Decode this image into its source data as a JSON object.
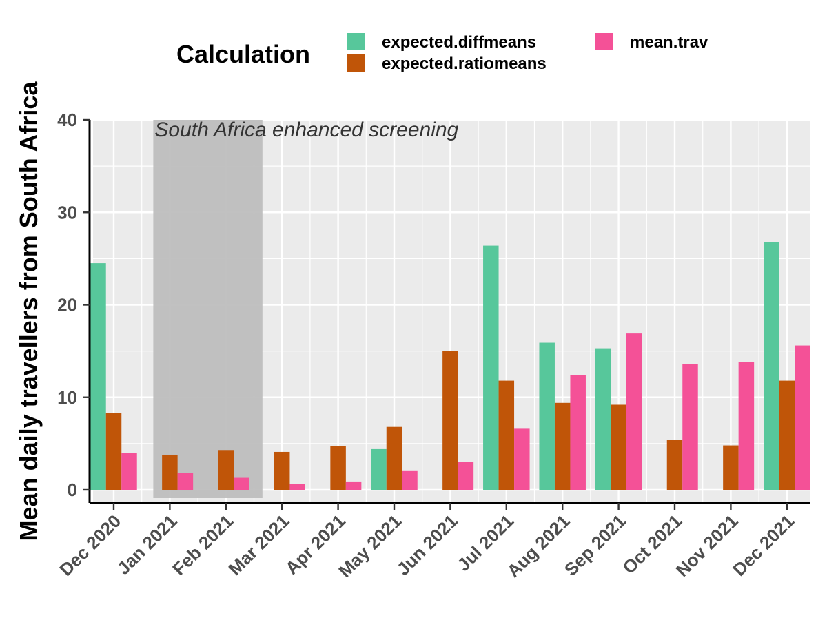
{
  "chart_data": {
    "type": "bar",
    "title": "",
    "xlabel": "",
    "ylabel": "Mean daily travellers from South Africa",
    "ylim": [
      -1,
      40
    ],
    "yticks": [
      0,
      10,
      20,
      30,
      40
    ],
    "grid": true,
    "legend_position": "top",
    "legend_title": "Calculation",
    "categories": [
      "Dec 2020",
      "Jan 2021",
      "Feb 2021",
      "Mar 2021",
      "Apr 2021",
      "May 2021",
      "Jun 2021",
      "Jul 2021",
      "Aug 2021",
      "Sep 2021",
      "Oct 2021",
      "Nov 2021",
      "Dec 2021"
    ],
    "series": [
      {
        "name": "expected.diffmeans",
        "color": "#57C79B",
        "values": [
          24.5,
          0,
          0,
          0,
          0,
          4.4,
          0,
          26.4,
          15.9,
          15.3,
          0,
          0,
          26.8
        ]
      },
      {
        "name": "expected.ratiomeans",
        "color": "#C05508",
        "values": [
          8.3,
          3.8,
          4.3,
          4.1,
          4.7,
          6.8,
          15.0,
          11.8,
          9.4,
          9.2,
          5.4,
          4.8,
          11.8
        ]
      },
      {
        "name": "mean.trav",
        "color": "#F45197",
        "values": [
          4.0,
          1.8,
          1.3,
          0.6,
          0.9,
          2.1,
          3.0,
          6.6,
          12.4,
          16.9,
          13.6,
          13.8,
          15.6
        ]
      }
    ],
    "annotation": {
      "text": "South Africa enhanced screening",
      "start": "Jan 2021",
      "end": "Feb 2021"
    }
  }
}
